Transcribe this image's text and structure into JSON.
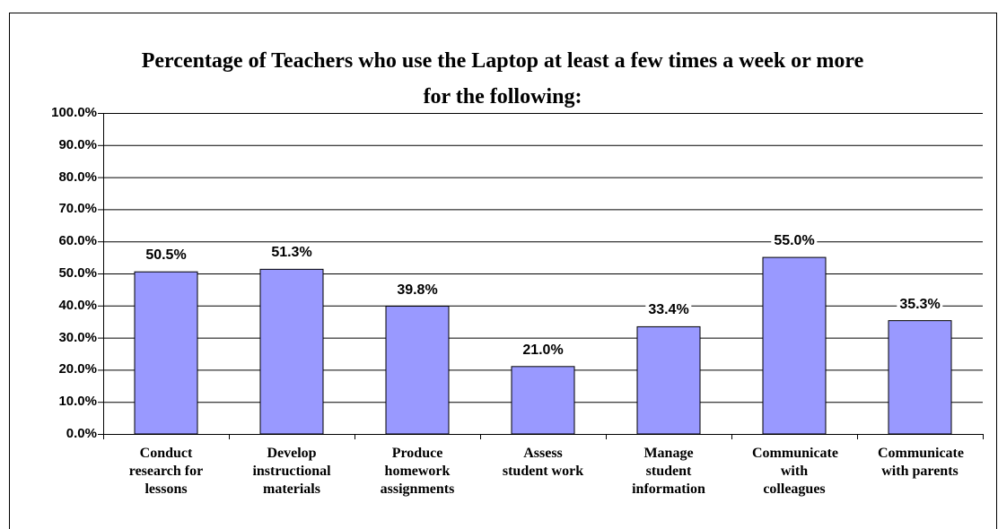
{
  "chart_data": {
    "type": "bar",
    "title": "Percentage of Teachers who use the Laptop at least a few times a week or more for the following:",
    "categories": [
      "Conduct research for lessons",
      "Develop instructional materials",
      "Produce homework assignments",
      "Assess student work",
      "Manage student information",
      "Communicate with colleagues",
      "Communicate with parents"
    ],
    "values": [
      50.5,
      51.3,
      39.8,
      21.0,
      33.4,
      55.0,
      35.3
    ],
    "value_labels": [
      "50.5%",
      "51.3%",
      "39.8%",
      "21.0%",
      "33.4%",
      "55.0%",
      "35.3%"
    ],
    "color": "#9999ff",
    "ylim": [
      0,
      100
    ],
    "yticks": [
      {
        "value": 0,
        "label": "0.0%"
      },
      {
        "value": 10,
        "label": "10.0%"
      },
      {
        "value": 20,
        "label": "20.0%"
      },
      {
        "value": 30,
        "label": "30.0%"
      },
      {
        "value": 40,
        "label": "40.0%"
      },
      {
        "value": 50,
        "label": "50.0%"
      },
      {
        "value": 60,
        "label": "60.0%"
      },
      {
        "value": 70,
        "label": "70.0%"
      },
      {
        "value": 80,
        "label": "80.0%"
      },
      {
        "value": 90,
        "label": "90.0%"
      },
      {
        "value": 100,
        "label": "100.0%"
      }
    ],
    "grid": true
  }
}
